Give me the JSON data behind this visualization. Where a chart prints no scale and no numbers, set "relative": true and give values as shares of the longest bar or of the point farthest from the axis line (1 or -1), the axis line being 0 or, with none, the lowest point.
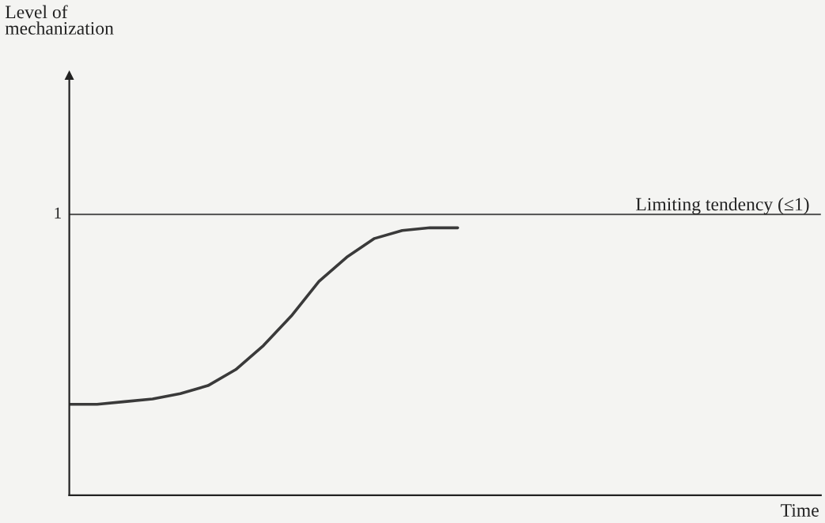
{
  "chart_data": {
    "type": "line",
    "relative": true,
    "categories": [
      null,
      null,
      null,
      null,
      null,
      null,
      null,
      null,
      null,
      null,
      null,
      null,
      null,
      null,
      null
    ],
    "series": [
      {
        "color": "#3a3a3a",
        "values": [
          0.34,
          0.34,
          0.35,
          0.36,
          0.38,
          0.41,
          0.47,
          0.56,
          0.67,
          0.8,
          0.89,
          0.96,
          0.99,
          1,
          1
        ]
      }
    ],
    "ref_lines": [
      {
        "axis": "y",
        "value": 1.05,
        "label": "Limiting tendency (≤1)",
        "color": "#3a3a3a",
        "line_style": "solid"
      }
    ],
    "annotations": [
      "1",
      "Level of\nmechanization",
      "Time"
    ],
    "grid": false,
    "legend": false,
    "marker": "none",
    "line_style": "solid"
  }
}
